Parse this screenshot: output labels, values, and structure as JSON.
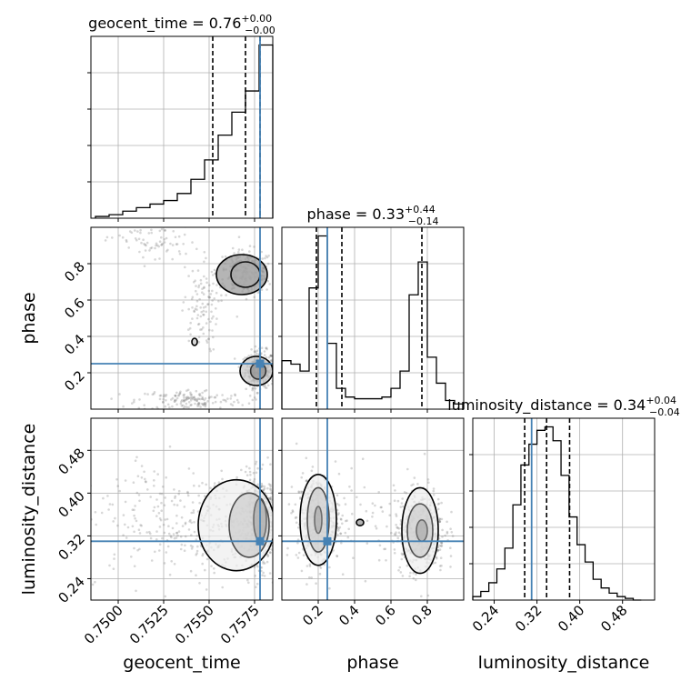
{
  "chart_data": [
    {
      "type": "histogram",
      "panel": "geocent_time-marginal",
      "title": {
        "main": "geocent_time = 0.76",
        "sup": "+0.00",
        "sub": "−0.00"
      },
      "xlim": [
        0.7485,
        0.7585
      ],
      "edges": [
        0.74875,
        0.7495,
        0.75025,
        0.751,
        0.75175,
        0.7525,
        0.75325,
        0.754,
        0.75475,
        0.7555,
        0.75625,
        0.757,
        0.75775,
        0.7585
      ],
      "counts": [
        0.01,
        0.02,
        0.04,
        0.06,
        0.08,
        0.1,
        0.14,
        0.22,
        0.33,
        0.47,
        0.6,
        0.72,
        0.98
      ],
      "quantiles": [
        0.7552,
        0.757,
        0.7578
      ],
      "truth": 0.7578
    },
    {
      "type": "histogram",
      "panel": "phase-marginal",
      "title": {
        "main": "phase = 0.33",
        "sup": "+0.44",
        "sub": "−0.14"
      },
      "xlim": [
        0.0,
        1.0
      ],
      "edges": [
        0.0,
        0.05,
        0.1,
        0.15,
        0.2,
        0.25,
        0.3,
        0.35,
        0.4,
        0.45,
        0.5,
        0.55,
        0.6,
        0.65,
        0.7,
        0.75,
        0.8,
        0.85,
        0.9,
        0.95,
        1.0
      ],
      "counts": [
        0.28,
        0.26,
        0.22,
        0.7,
        1.0,
        0.38,
        0.12,
        0.07,
        0.06,
        0.06,
        0.06,
        0.07,
        0.12,
        0.22,
        0.66,
        0.85,
        0.3,
        0.15,
        0.05,
        0.03
      ],
      "quantiles": [
        0.19,
        0.33,
        0.77
      ],
      "truth": 0.25
    },
    {
      "type": "histogram",
      "panel": "luminosity_distance-marginal",
      "title": {
        "main": "luminosity_distance = 0.34",
        "sup": "+0.04",
        "sub": "−0.04"
      },
      "xlim": [
        0.2,
        0.54
      ],
      "edges": [
        0.2,
        0.215,
        0.23,
        0.245,
        0.26,
        0.275,
        0.29,
        0.305,
        0.32,
        0.335,
        0.35,
        0.365,
        0.38,
        0.395,
        0.41,
        0.425,
        0.44,
        0.455,
        0.47,
        0.485,
        0.5,
        0.515
      ],
      "counts": [
        0.02,
        0.05,
        0.1,
        0.18,
        0.3,
        0.55,
        0.78,
        0.9,
        0.98,
        1.0,
        0.92,
        0.72,
        0.48,
        0.32,
        0.22,
        0.12,
        0.07,
        0.04,
        0.02,
        0.01,
        0.0
      ],
      "quantiles": [
        0.297,
        0.338,
        0.381
      ],
      "truth": 0.31
    },
    {
      "type": "scatter",
      "panel": "phase-vs-geocent_time",
      "xlim": [
        0.7485,
        0.7585
      ],
      "ylim": [
        0.0,
        1.0
      ],
      "truth": {
        "x": 0.7578,
        "y": 0.25
      },
      "density_blobs": [
        {
          "x": 0.7578,
          "y": 0.22,
          "sx": 0.0004,
          "sy": 0.05,
          "w": 4
        },
        {
          "x": 0.757,
          "y": 0.75,
          "sx": 0.0008,
          "sy": 0.06,
          "w": 3
        },
        {
          "x": 0.754,
          "y": 0.05,
          "sx": 0.0015,
          "sy": 0.03,
          "w": 2
        },
        {
          "x": 0.7545,
          "y": 0.55,
          "sx": 0.0005,
          "sy": 0.12,
          "w": 1.2
        },
        {
          "x": 0.752,
          "y": 0.92,
          "sx": 0.0012,
          "sy": 0.06,
          "w": 1
        }
      ],
      "contours": [
        {
          "cx": 0.7577,
          "cy": 0.21,
          "rx": 0.00042,
          "ry": 0.045
        },
        {
          "cx": 0.7576,
          "cy": 0.21,
          "rx": 0.0009,
          "ry": 0.08
        },
        {
          "cx": 0.757,
          "cy": 0.74,
          "rx": 0.0008,
          "ry": 0.07
        },
        {
          "cx": 0.7568,
          "cy": 0.74,
          "rx": 0.0014,
          "ry": 0.11
        },
        {
          "cx": 0.7542,
          "cy": 0.37,
          "rx": 0.00015,
          "ry": 0.02
        }
      ]
    },
    {
      "type": "scatter",
      "panel": "luminosity_distance-vs-geocent_time",
      "xlim": [
        0.7485,
        0.7585
      ],
      "ylim": [
        0.2,
        0.54
      ],
      "truth": {
        "x": 0.7578,
        "y": 0.31
      },
      "density_blobs": [
        {
          "x": 0.7578,
          "y": 0.35,
          "sx": 0.0005,
          "sy": 0.04,
          "w": 4
        },
        {
          "x": 0.7555,
          "y": 0.34,
          "sx": 0.0018,
          "sy": 0.05,
          "w": 2
        },
        {
          "x": 0.752,
          "y": 0.36,
          "sx": 0.002,
          "sy": 0.06,
          "w": 1
        }
      ],
      "contours": [
        {
          "cx": 0.7578,
          "cy": 0.35,
          "rx": 0.00035,
          "ry": 0.04
        },
        {
          "cx": 0.7572,
          "cy": 0.34,
          "rx": 0.0011,
          "ry": 0.06
        },
        {
          "cx": 0.7565,
          "cy": 0.34,
          "rx": 0.0021,
          "ry": 0.085
        }
      ]
    },
    {
      "type": "scatter",
      "panel": "luminosity_distance-vs-phase",
      "xlim": [
        0.0,
        1.0
      ],
      "ylim": [
        0.2,
        0.54
      ],
      "truth": {
        "x": 0.25,
        "y": 0.31
      },
      "density_blobs": [
        {
          "x": 0.2,
          "y": 0.35,
          "sx": 0.06,
          "sy": 0.04,
          "w": 3
        },
        {
          "x": 0.76,
          "y": 0.33,
          "sx": 0.07,
          "sy": 0.04,
          "w": 3
        },
        {
          "x": 0.5,
          "y": 0.34,
          "sx": 0.25,
          "sy": 0.06,
          "w": 0.6
        }
      ],
      "contours": [
        {
          "cx": 0.2,
          "cy": 0.35,
          "rx": 0.02,
          "ry": 0.025
        },
        {
          "cx": 0.2,
          "cy": 0.35,
          "rx": 0.06,
          "ry": 0.06
        },
        {
          "cx": 0.2,
          "cy": 0.35,
          "rx": 0.1,
          "ry": 0.085
        },
        {
          "cx": 0.77,
          "cy": 0.33,
          "rx": 0.03,
          "ry": 0.02
        },
        {
          "cx": 0.76,
          "cy": 0.33,
          "rx": 0.07,
          "ry": 0.05
        },
        {
          "cx": 0.76,
          "cy": 0.33,
          "rx": 0.1,
          "ry": 0.08
        },
        {
          "cx": 0.43,
          "cy": 0.345,
          "rx": 0.02,
          "ry": 0.006
        }
      ]
    }
  ],
  "axes": {
    "geocent_time": {
      "label": "geocent_time",
      "ticks": [
        0.75,
        0.7525,
        0.755,
        0.7575
      ],
      "tick_labels": [
        "0.7500",
        "0.7525",
        "0.7550",
        "0.7575"
      ]
    },
    "phase": {
      "label": "phase",
      "ticks": [
        0.2,
        0.4,
        0.6,
        0.8
      ],
      "tick_labels": [
        "0.2",
        "0.4",
        "0.6",
        "0.8"
      ]
    },
    "luminosity_distance": {
      "label": "luminosity_distance",
      "ticks": [
        0.24,
        0.32,
        0.4,
        0.48
      ],
      "tick_labels": [
        "0.24",
        "0.32",
        "0.40",
        "0.48"
      ]
    }
  },
  "colors": {
    "truth": "#4682b4",
    "hist": "#000000",
    "grid": "#b0b0b0",
    "points": "#707070"
  }
}
